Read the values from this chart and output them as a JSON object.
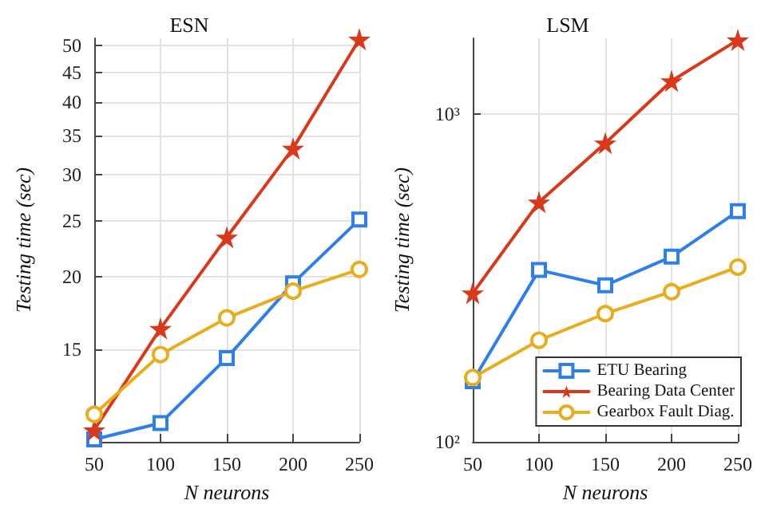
{
  "chart_data": [
    {
      "type": "line",
      "title": "ESN",
      "xlabel": "N neurons",
      "ylabel": "Testing time (sec)",
      "x": [
        50,
        100,
        150,
        200,
        250
      ],
      "xlim": [
        50,
        250
      ],
      "xticks": [
        50,
        100,
        150,
        200,
        250
      ],
      "ylim": [
        10.4,
        51.5
      ],
      "yticks": [
        15,
        20,
        25,
        30,
        35,
        40,
        45,
        50
      ],
      "log": "y",
      "grid": true,
      "legend": false,
      "series": [
        {
          "color": "#2f7fe8",
          "marker": "square",
          "values": [
            10.5,
            11.2,
            14.5,
            19.5,
            25.1
          ]
        },
        {
          "color": "#d9391b",
          "marker": "star",
          "values": [
            10.9,
            16.3,
            23.4,
            33.3,
            51.3
          ]
        },
        {
          "color": "#e8ad1e",
          "marker": "circle",
          "values": [
            11.6,
            14.7,
            17.0,
            18.9,
            20.6
          ]
        }
      ]
    },
    {
      "type": "line",
      "title": "LSM",
      "xlabel": "N neurons",
      "ylabel": "Testing time (sec)",
      "x": [
        50,
        100,
        150,
        200,
        250
      ],
      "xlim": [
        50,
        250
      ],
      "xticks": [
        50,
        100,
        150,
        200,
        250
      ],
      "ylim": [
        100,
        1700
      ],
      "yticks": [
        {
          "value": 100,
          "label": "10²"
        },
        {
          "value": 1000,
          "label": "10³"
        }
      ],
      "log": "y",
      "grid": true,
      "legend": "bottom right",
      "series": [
        {
          "name": "ETU Bearing",
          "color": "#2f7fe8",
          "marker": "square",
          "values": [
            153,
            334,
            300,
            367,
            505
          ]
        },
        {
          "name": "Bearing Data Center",
          "color": "#d9391b",
          "marker": "star",
          "values": [
            284,
            538,
            814,
            1260,
            1680
          ]
        },
        {
          "name": "Gearbox Fault Diag.",
          "color": "#e8ad1e",
          "marker": "circle",
          "values": [
            157,
            204,
            246,
            287,
            341
          ]
        }
      ]
    }
  ]
}
